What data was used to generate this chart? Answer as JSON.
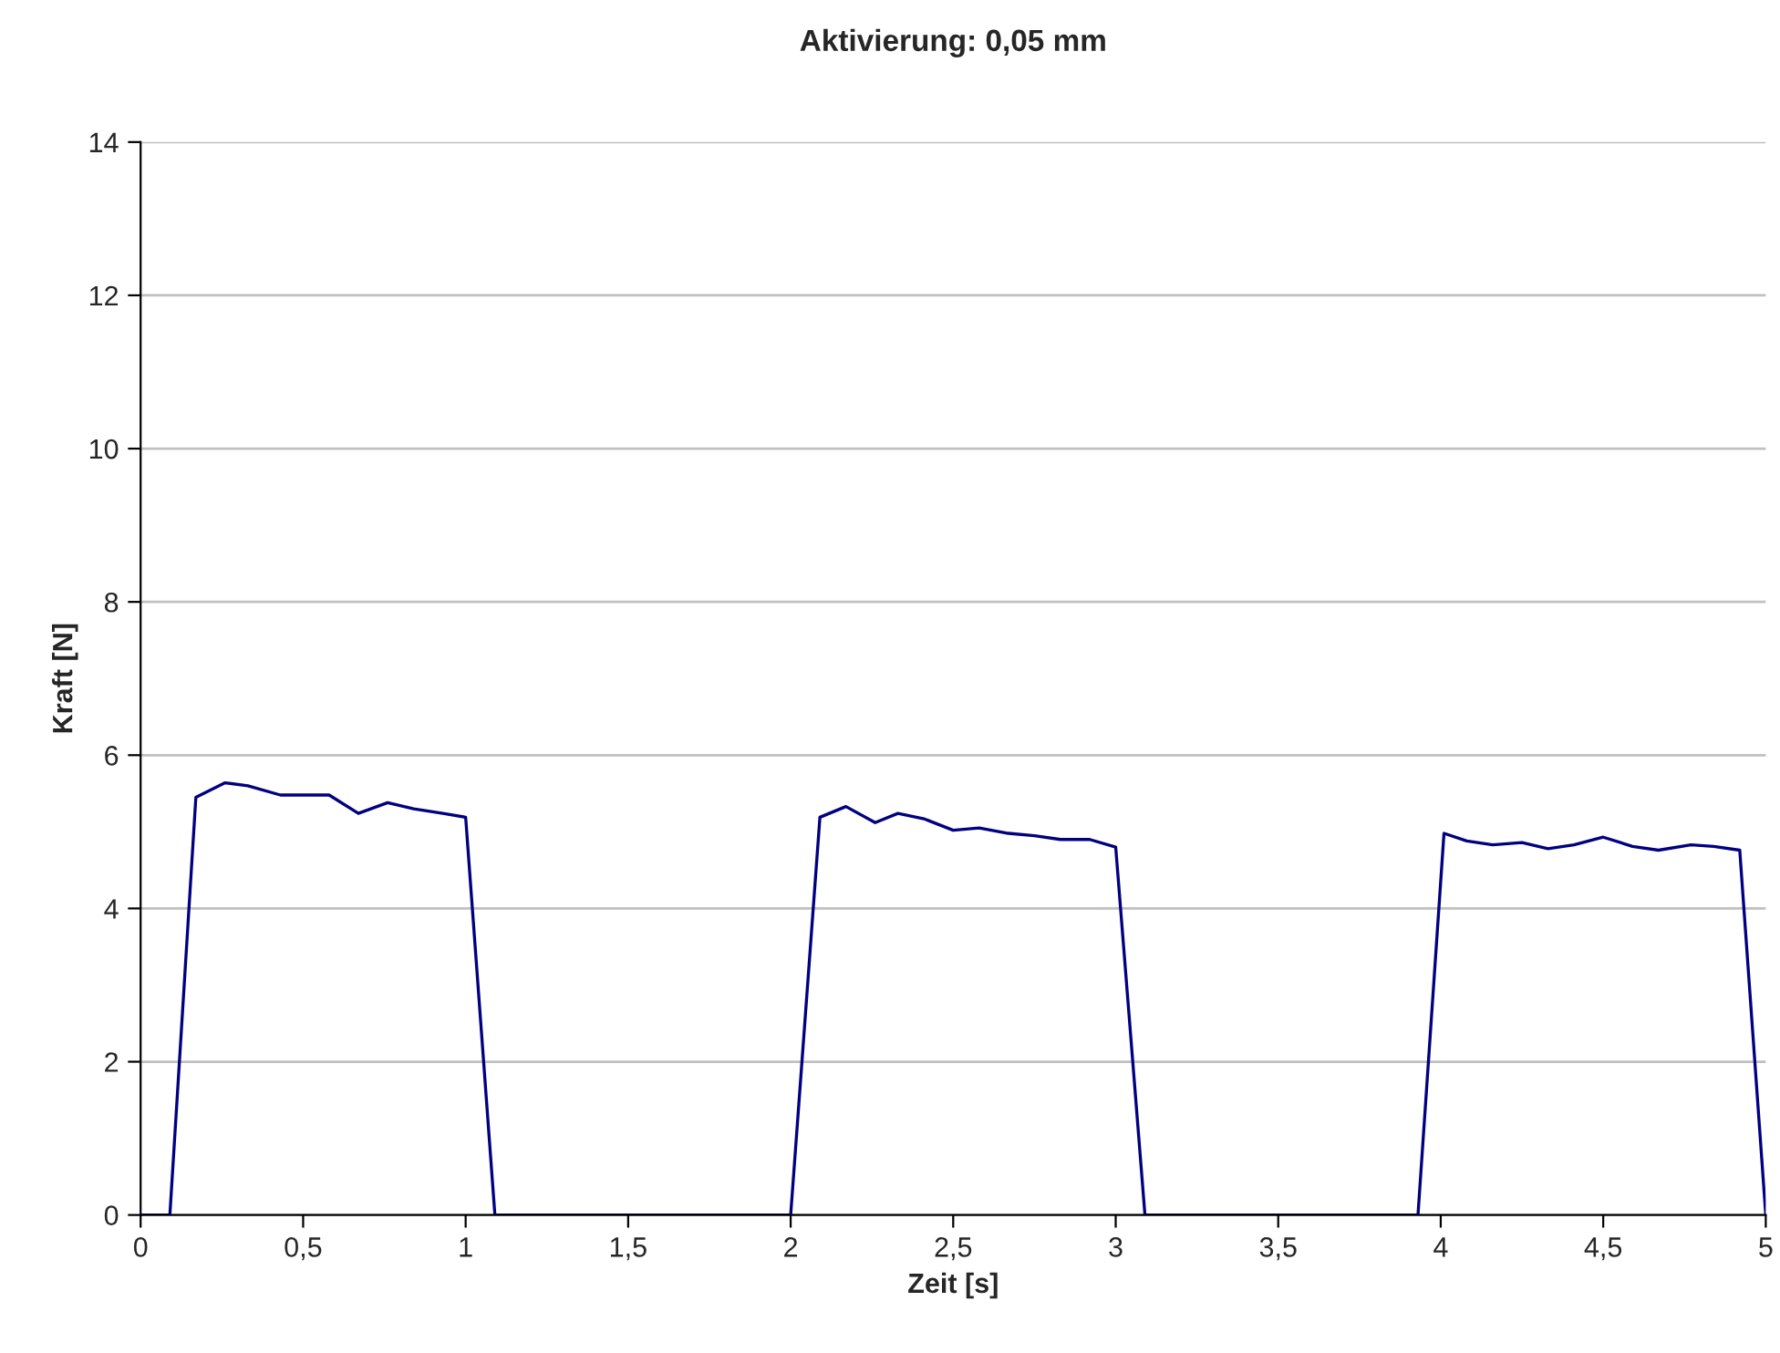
{
  "chart_data": {
    "type": "line",
    "title": "Aktivierung: 0,05 mm",
    "xlabel": "Zeit [s]",
    "ylabel": "Kraft [N]",
    "xlim": [
      0,
      5
    ],
    "ylim": [
      0,
      14
    ],
    "xticks": [
      {
        "value": 0,
        "label": "0"
      },
      {
        "value": 0.5,
        "label": "0,5"
      },
      {
        "value": 1,
        "label": "1"
      },
      {
        "value": 1.5,
        "label": "1,5"
      },
      {
        "value": 2,
        "label": "2"
      },
      {
        "value": 2.5,
        "label": "2,5"
      },
      {
        "value": 3,
        "label": "3"
      },
      {
        "value": 3.5,
        "label": "3,5"
      },
      {
        "value": 4,
        "label": "4"
      },
      {
        "value": 4.5,
        "label": "4,5"
      },
      {
        "value": 5,
        "label": "5"
      }
    ],
    "yticks": [
      0,
      2,
      4,
      6,
      8,
      10,
      12,
      14
    ],
    "grid": "y",
    "marker": "none",
    "line_style": "solid",
    "series": [
      {
        "color": "#000080",
        "x": [
          0,
          0.09,
          0.17,
          0.26,
          0.33,
          0.43,
          0.5,
          0.58,
          0.67,
          0.76,
          0.84,
          0.93,
          1.0,
          1.09,
          2.0,
          2.09,
          2.17,
          2.26,
          2.33,
          2.41,
          2.5,
          2.58,
          2.67,
          2.75,
          2.83,
          2.92,
          3.0,
          3.09,
          3.93,
          4.01,
          4.08,
          4.16,
          4.25,
          4.33,
          4.41,
          4.5,
          4.59,
          4.67,
          4.77,
          4.84,
          4.92,
          5.0
        ],
        "values": [
          0,
          0,
          5.45,
          5.64,
          5.6,
          5.48,
          5.48,
          5.48,
          5.24,
          5.38,
          5.3,
          5.24,
          5.19,
          0,
          0,
          5.19,
          5.33,
          5.12,
          5.24,
          5.17,
          5.02,
          5.05,
          4.98,
          4.95,
          4.9,
          4.9,
          4.8,
          0,
          0,
          4.98,
          4.88,
          4.83,
          4.86,
          4.78,
          4.83,
          4.93,
          4.81,
          4.76,
          4.83,
          4.81,
          4.76,
          0
        ]
      }
    ]
  }
}
